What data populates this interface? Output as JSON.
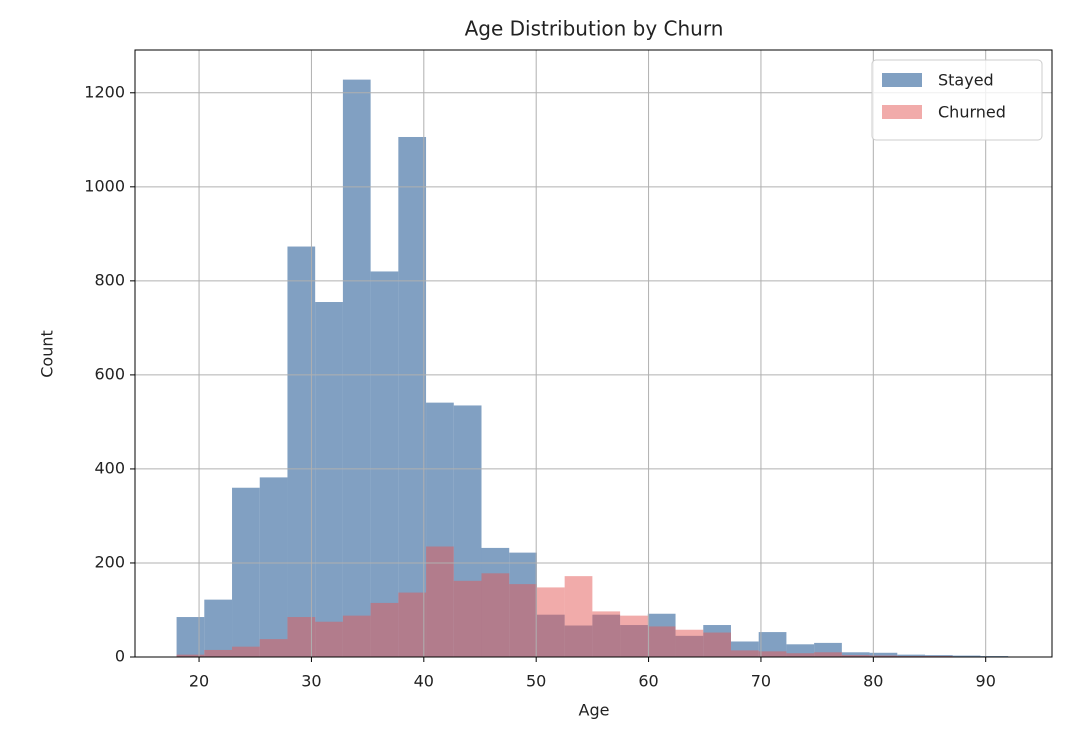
{
  "chart_data": {
    "type": "histogram",
    "title": "Age Distribution by Churn",
    "xlabel": "Age",
    "ylabel": "Count",
    "bins": [
      18,
      20.4667,
      22.9333,
      25.4,
      27.8667,
      30.3333,
      32.8,
      35.2667,
      37.7333,
      40.2,
      42.6667,
      45.1333,
      47.6,
      50.0667,
      52.5333,
      55,
      57.4667,
      59.9333,
      62.4,
      64.8667,
      67.3333,
      69.8,
      72.2667,
      74.7333,
      77.2,
      79.6667,
      82.1333,
      84.6,
      87.0667,
      89.5333,
      92
    ],
    "series": [
      {
        "name": "Stayed",
        "color": "#4c78a8",
        "values": [
          85,
          122,
          360,
          382,
          873,
          755,
          1228,
          820,
          1106,
          541,
          535,
          232,
          222,
          90,
          67,
          90,
          68,
          92,
          45,
          68,
          33,
          53,
          27,
          30,
          10,
          9,
          5,
          4,
          3,
          2
        ]
      },
      {
        "name": "Churned",
        "color": "#e45756",
        "values": [
          5,
          15,
          22,
          38,
          85,
          75,
          88,
          115,
          137,
          235,
          162,
          178,
          155,
          148,
          172,
          97,
          88,
          65,
          58,
          52,
          14,
          12,
          8,
          10,
          4,
          3,
          2,
          2,
          1,
          1
        ]
      }
    ],
    "xlim": [
      14.3,
      95.9
    ],
    "ylim": [
      0,
      1291
    ],
    "xticks": [
      20,
      30,
      40,
      50,
      60,
      70,
      80,
      90
    ],
    "yticks": [
      0,
      200,
      400,
      600,
      800,
      1000,
      1200
    ],
    "grid": true,
    "legend": "upper right"
  }
}
